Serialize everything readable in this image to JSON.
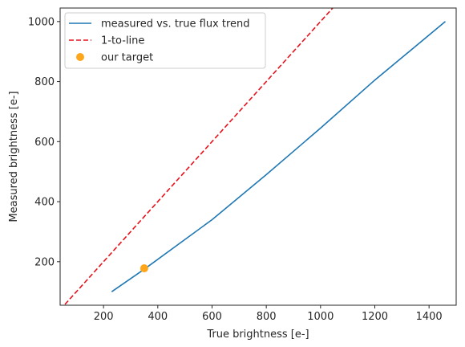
{
  "chart_data": {
    "type": "line",
    "xlabel": "True brightness [e-]",
    "ylabel": "Measured brightness [e-]",
    "xlim": [
      40,
      1500
    ],
    "ylim": [
      55,
      1045
    ],
    "xticks": [
      200,
      400,
      600,
      800,
      1000,
      1200,
      1400
    ],
    "yticks": [
      200,
      400,
      600,
      800,
      1000
    ],
    "grid": false,
    "legend_position": "upper-left",
    "series": [
      {
        "name": "measured vs. true flux trend",
        "type": "line",
        "style": "solid",
        "color": "#1f77b4",
        "x": [
          230,
          350,
          600,
          800,
          1000,
          1200,
          1460
        ],
        "y": [
          100,
          175,
          340,
          490,
          645,
          805,
          1000
        ]
      },
      {
        "name": "1-to-line",
        "type": "line",
        "style": "dashed",
        "color": "#e8111b",
        "x": [
          40,
          1045
        ],
        "y": [
          40,
          1045
        ]
      },
      {
        "name": "our target",
        "type": "scatter",
        "color": "#ffa61a",
        "x": [
          350
        ],
        "y": [
          178
        ]
      }
    ]
  }
}
